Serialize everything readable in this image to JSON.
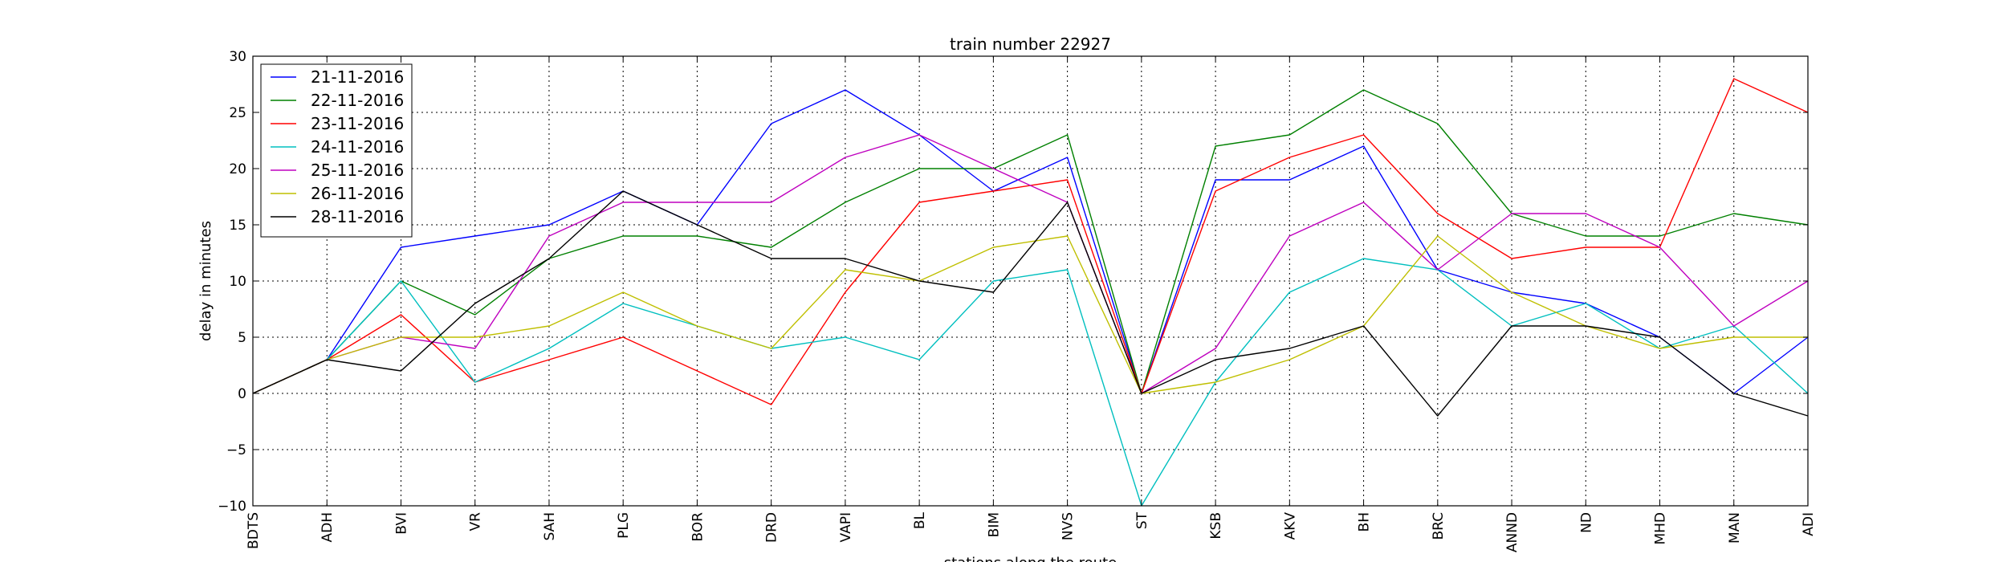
{
  "chart_data": {
    "type": "line",
    "title": "train number 22927",
    "xlabel": "stations along the route",
    "ylabel": "delay in minutes",
    "ylim": [
      -10,
      30
    ],
    "yticks": [
      -10,
      -5,
      0,
      5,
      10,
      15,
      20,
      25,
      30
    ],
    "grid": true,
    "legend_position": "top-left",
    "categories": [
      "BDTS",
      "ADH",
      "BVI",
      "VR",
      "SAH",
      "PLG",
      "BOR",
      "DRD",
      "VAPI",
      "BL",
      "BIM",
      "NVS",
      "ST",
      "KSB",
      "AKV",
      "BH",
      "BRC",
      "ANND",
      "ND",
      "MHD",
      "MAN",
      "ADI"
    ],
    "series": [
      {
        "name": "21-11-2016",
        "color": "#0000ff",
        "values": [
          0,
          3,
          13,
          14,
          15,
          18,
          15,
          24,
          27,
          23,
          18,
          21,
          0,
          19,
          19,
          22,
          11,
          9,
          8,
          5,
          0,
          5
        ]
      },
      {
        "name": "22-11-2016",
        "color": "#008000",
        "values": [
          0,
          3,
          10,
          7,
          12,
          14,
          14,
          13,
          17,
          20,
          20,
          23,
          0,
          22,
          23,
          27,
          24,
          16,
          14,
          14,
          16,
          15
        ]
      },
      {
        "name": "23-11-2016",
        "color": "#ff0000",
        "values": [
          0,
          3,
          7,
          1,
          3,
          5,
          2,
          -1,
          9,
          17,
          18,
          19,
          0,
          18,
          21,
          23,
          16,
          12,
          13,
          13,
          28,
          25
        ]
      },
      {
        "name": "24-11-2016",
        "color": "#00bfbf",
        "values": [
          0,
          3,
          10,
          1,
          4,
          8,
          6,
          4,
          5,
          3,
          10,
          11,
          -10,
          1,
          9,
          12,
          11,
          6,
          8,
          4,
          6,
          0
        ]
      },
      {
        "name": "25-11-2016",
        "color": "#bf00bf",
        "values": [
          0,
          3,
          5,
          4,
          14,
          17,
          17,
          17,
          21,
          23,
          20,
          17,
          0,
          4,
          14,
          17,
          11,
          16,
          16,
          13,
          6,
          10
        ]
      },
      {
        "name": "26-11-2016",
        "color": "#bfbf00",
        "values": [
          0,
          3,
          5,
          5,
          6,
          9,
          6,
          4,
          11,
          10,
          13,
          14,
          0,
          1,
          3,
          6,
          14,
          9,
          6,
          4,
          5,
          5
        ]
      },
      {
        "name": "28-11-2016",
        "color": "#000000",
        "values": [
          0,
          3,
          2,
          8,
          12,
          18,
          15,
          12,
          12,
          10,
          9,
          17,
          0,
          3,
          4,
          6,
          -2,
          6,
          6,
          5,
          0,
          -2
        ]
      }
    ]
  }
}
